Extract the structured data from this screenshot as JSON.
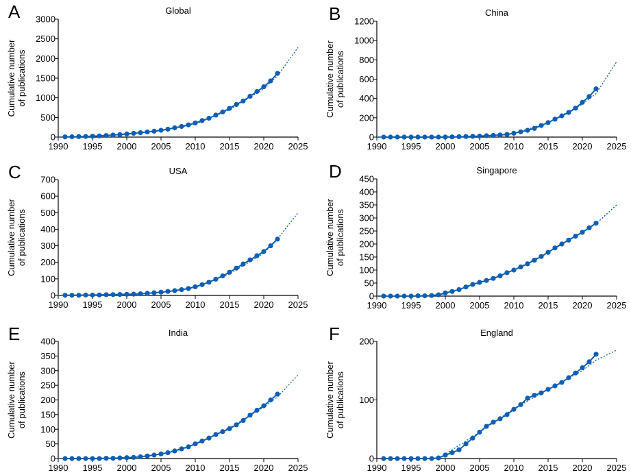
{
  "colors": {
    "series": "#0e5fb4",
    "axis": "#000000"
  },
  "chart_data": [
    {
      "panel_letter": "A",
      "title": "Global",
      "type": "line",
      "ylabel": [
        "Cumulative number",
        "of publications"
      ],
      "xlim": [
        1990,
        2025
      ],
      "ylim": [
        0,
        3000
      ],
      "xticks": [
        "1990",
        "1995",
        "2000",
        "2005",
        "2010",
        "2015",
        "2020",
        "2025"
      ],
      "yticks": [
        "0",
        "500",
        "1000",
        "1500",
        "2000",
        "2500",
        "3000"
      ],
      "series": [
        {
          "x": [
            1991,
            1992,
            1993,
            1994,
            1995,
            1996,
            1997,
            1998,
            1999,
            2000,
            2001,
            2002,
            2003,
            2004,
            2005,
            2006,
            2007,
            2008,
            2009,
            2010,
            2011,
            2012,
            2013,
            2014,
            2015,
            2016,
            2017,
            2018,
            2019,
            2020,
            2021,
            2022
          ],
          "y": [
            5,
            8,
            12,
            16,
            22,
            30,
            40,
            52,
            65,
            80,
            96,
            112,
            130,
            150,
            175,
            200,
            235,
            270,
            310,
            360,
            420,
            480,
            560,
            640,
            730,
            830,
            920,
            1040,
            1160,
            1280,
            1430,
            1620
          ]
        }
      ],
      "fit": {
        "x": [
          1990,
          1995,
          2000,
          2005,
          2010,
          2015,
          2020,
          2022,
          2025
        ],
        "y": [
          0,
          20,
          70,
          160,
          330,
          690,
          1230,
          1560,
          2280
        ]
      }
    },
    {
      "panel_letter": "B",
      "title": "China",
      "type": "line",
      "ylabel": [
        "Cumulative number",
        "of publications"
      ],
      "xlim": [
        1990,
        2025
      ],
      "ylim": [
        0,
        1200
      ],
      "xticks": [
        "1990",
        "1995",
        "2000",
        "2005",
        "2010",
        "2015",
        "2020",
        "2025"
      ],
      "yticks": [
        "0",
        "200",
        "400",
        "600",
        "800",
        "1000",
        "1200"
      ],
      "series": [
        {
          "x": [
            1991,
            1992,
            1993,
            1994,
            1995,
            1996,
            1997,
            1998,
            1999,
            2000,
            2001,
            2002,
            2003,
            2004,
            2005,
            2006,
            2007,
            2008,
            2009,
            2010,
            2011,
            2012,
            2013,
            2014,
            2015,
            2016,
            2017,
            2018,
            2019,
            2020,
            2021,
            2022
          ],
          "y": [
            0,
            0,
            0,
            0,
            0,
            0,
            0,
            0,
            0,
            1,
            2,
            4,
            6,
            8,
            10,
            14,
            18,
            22,
            28,
            40,
            55,
            70,
            90,
            120,
            150,
            185,
            220,
            255,
            300,
            360,
            420,
            500
          ]
        }
      ],
      "fit": {
        "x": [
          1990,
          2000,
          2005,
          2010,
          2015,
          2020,
          2022,
          2025
        ],
        "y": [
          0,
          0,
          8,
          35,
          150,
          340,
          450,
          780
        ]
      }
    },
    {
      "panel_letter": "C",
      "title": "USA",
      "type": "line",
      "ylabel": [
        "Cumulative number",
        "of publications"
      ],
      "xlim": [
        1990,
        2025
      ],
      "ylim": [
        0,
        700
      ],
      "xticks": [
        "1990",
        "1995",
        "2000",
        "2005",
        "2010",
        "2015",
        "2020",
        "2025"
      ],
      "yticks": [
        "0",
        "100",
        "200",
        "300",
        "400",
        "500",
        "600",
        "700"
      ],
      "series": [
        {
          "x": [
            1991,
            1992,
            1993,
            1994,
            1995,
            1996,
            1997,
            1998,
            1999,
            2000,
            2001,
            2002,
            2003,
            2004,
            2005,
            2006,
            2007,
            2008,
            2009,
            2010,
            2011,
            2012,
            2013,
            2014,
            2015,
            2016,
            2017,
            2018,
            2019,
            2020,
            2021,
            2022
          ],
          "y": [
            1,
            1,
            1,
            2,
            2,
            3,
            4,
            5,
            6,
            7,
            8,
            10,
            13,
            16,
            20,
            24,
            29,
            35,
            42,
            52,
            65,
            80,
            98,
            118,
            140,
            165,
            190,
            215,
            240,
            265,
            300,
            340
          ]
        }
      ],
      "fit": {
        "x": [
          1990,
          2000,
          2005,
          2010,
          2015,
          2020,
          2022,
          2025
        ],
        "y": [
          0,
          5,
          18,
          48,
          130,
          255,
          340,
          500
        ]
      }
    },
    {
      "panel_letter": "D",
      "title": "Singapore",
      "type": "line",
      "ylabel": [
        "Cumulative number",
        "of publications"
      ],
      "xlim": [
        1990,
        2025
      ],
      "ylim": [
        0,
        450
      ],
      "xticks": [
        "1990",
        "1995",
        "2000",
        "2005",
        "2010",
        "2015",
        "2020",
        "2025"
      ],
      "yticks": [
        "0",
        "50",
        "100",
        "150",
        "200",
        "250",
        "300",
        "350",
        "400",
        "450"
      ],
      "series": [
        {
          "x": [
            1991,
            1992,
            1993,
            1994,
            1995,
            1996,
            1997,
            1998,
            1999,
            2000,
            2001,
            2002,
            2003,
            2004,
            2005,
            2006,
            2007,
            2008,
            2009,
            2010,
            2011,
            2012,
            2013,
            2014,
            2015,
            2016,
            2017,
            2018,
            2019,
            2020,
            2021,
            2022
          ],
          "y": [
            0,
            0,
            0,
            0,
            0,
            1,
            1,
            2,
            5,
            12,
            18,
            25,
            35,
            45,
            53,
            60,
            68,
            78,
            90,
            100,
            112,
            124,
            138,
            152,
            168,
            185,
            200,
            215,
            230,
            245,
            262,
            280
          ]
        }
      ],
      "fit": {
        "x": [
          1990,
          1998,
          2000,
          2005,
          2010,
          2015,
          2020,
          2022,
          2025
        ],
        "y": [
          0,
          0,
          10,
          50,
          100,
          168,
          245,
          278,
          350
        ]
      }
    },
    {
      "panel_letter": "E",
      "title": "India",
      "type": "line",
      "ylabel": [
        "Cumulative number",
        "of publications"
      ],
      "xlim": [
        1990,
        2025
      ],
      "ylim": [
        0,
        400
      ],
      "xticks": [
        "1990",
        "1995",
        "2000",
        "2005",
        "2010",
        "2015",
        "2020",
        "2025"
      ],
      "yticks": [
        "0",
        "50",
        "100",
        "150",
        "200",
        "250",
        "300",
        "350",
        "400"
      ],
      "series": [
        {
          "x": [
            1991,
            1992,
            1993,
            1994,
            1995,
            1996,
            1997,
            1998,
            1999,
            2000,
            2001,
            2002,
            2003,
            2004,
            2005,
            2006,
            2007,
            2008,
            2009,
            2010,
            2011,
            2012,
            2013,
            2014,
            2015,
            2016,
            2017,
            2018,
            2019,
            2020,
            2021,
            2022
          ],
          "y": [
            0,
            0,
            0,
            0,
            0,
            0,
            1,
            1,
            2,
            3,
            4,
            6,
            9,
            12,
            16,
            20,
            26,
            33,
            40,
            50,
            60,
            70,
            82,
            92,
            102,
            115,
            130,
            148,
            165,
            180,
            200,
            220
          ]
        }
      ],
      "fit": {
        "x": [
          1990,
          2000,
          2005,
          2010,
          2015,
          2020,
          2022,
          2025
        ],
        "y": [
          0,
          2,
          15,
          48,
          105,
          175,
          210,
          285
        ]
      }
    },
    {
      "panel_letter": "F",
      "title": "England",
      "type": "line",
      "ylabel": [
        "Cumulative number",
        "of publications"
      ],
      "xlim": [
        1990,
        2025
      ],
      "ylim": [
        0,
        200
      ],
      "xticks": [
        "1990",
        "1995",
        "2000",
        "2005",
        "2010",
        "2015",
        "2020",
        "2025"
      ],
      "yticks": [
        "0",
        "100",
        "200"
      ],
      "series": [
        {
          "x": [
            1991,
            1992,
            1993,
            1994,
            1995,
            1996,
            1997,
            1998,
            1999,
            2000,
            2001,
            2002,
            2003,
            2004,
            2005,
            2006,
            2007,
            2008,
            2009,
            2010,
            2011,
            2012,
            2013,
            2014,
            2015,
            2016,
            2017,
            2018,
            2019,
            2020,
            2021,
            2022
          ],
          "y": [
            0,
            0,
            0,
            0,
            0,
            0,
            0,
            0,
            1,
            6,
            10,
            15,
            25,
            35,
            45,
            55,
            62,
            68,
            75,
            84,
            92,
            103,
            108,
            112,
            118,
            124,
            130,
            138,
            146,
            155,
            165,
            178
          ]
        }
      ],
      "fit": {
        "x": [
          1999,
          2005,
          2010,
          2015,
          2020,
          2022,
          2025
        ],
        "y": [
          0,
          45,
          85,
          118,
          150,
          168,
          185
        ]
      }
    }
  ]
}
